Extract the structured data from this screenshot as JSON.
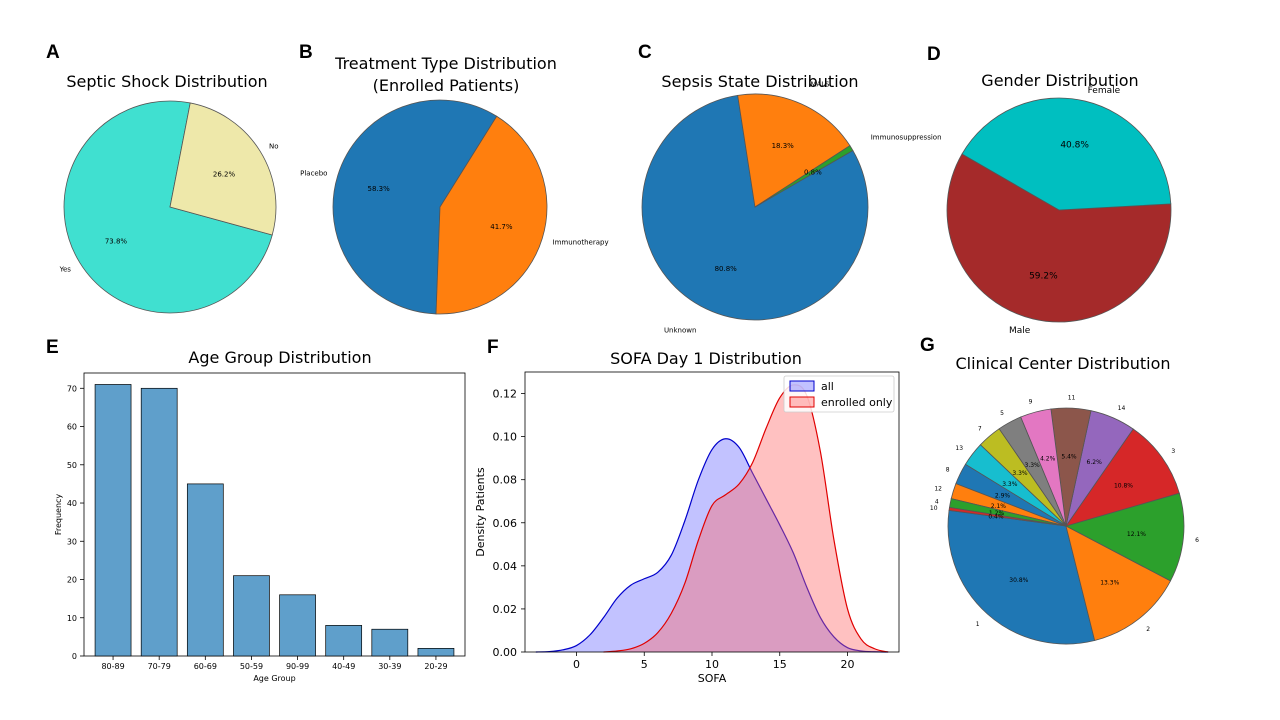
{
  "panels": {
    "A": {
      "letter": "A",
      "title": "Septic Shock Distribution"
    },
    "B": {
      "letter": "B",
      "title": "Treatment Type Distribution\n(Enrolled Patients)"
    },
    "C": {
      "letter": "C",
      "title": "Sepsis State Distribution"
    },
    "D": {
      "letter": "D",
      "title": "Gender Distribution"
    },
    "E": {
      "letter": "E",
      "title": "Age Group Distribution"
    },
    "F": {
      "letter": "F",
      "title": "SOFA Day 1 Distribution"
    },
    "G": {
      "letter": "G",
      "title": "Clinical Center Distribution"
    }
  },
  "chart_data": [
    {
      "id": "A",
      "type": "pie",
      "title": "Septic Shock Distribution",
      "slices": [
        {
          "label": "No",
          "pct_label": "26.2%",
          "value": 26.2,
          "color": "#EEE8AA"
        },
        {
          "label": "Yes",
          "pct_label": "73.8%",
          "value": 73.8,
          "color": "#40E0D0"
        }
      ]
    },
    {
      "id": "B",
      "type": "pie",
      "title": "Treatment Type Distribution (Enrolled Patients)",
      "slices": [
        {
          "label": "Placebo",
          "pct_label": "58.3%",
          "value": 58.3,
          "color": "#1f77b4"
        },
        {
          "label": "Immunotherapy",
          "pct_label": "41.7%",
          "value": 41.7,
          "color": "#ff7f0e"
        }
      ]
    },
    {
      "id": "C",
      "type": "pie",
      "title": "Sepsis State Distribution",
      "slices": [
        {
          "label": "Unknown",
          "pct_label": "80.8%",
          "value": 80.8,
          "color": "#1f77b4"
        },
        {
          "label": "MALS",
          "pct_label": "18.3%",
          "value": 18.3,
          "color": "#ff7f0e"
        },
        {
          "label": "Immunosuppression",
          "pct_label": "0.8%",
          "value": 0.8,
          "color": "#2ca02c"
        }
      ]
    },
    {
      "id": "D",
      "type": "pie",
      "title": "Gender Distribution",
      "slices": [
        {
          "label": "Male",
          "pct_label": "59.2%",
          "value": 59.2,
          "color": "#A52A2A"
        },
        {
          "label": "Female",
          "pct_label": "40.8%",
          "value": 40.8,
          "color": "#00BFC0"
        }
      ]
    },
    {
      "id": "E",
      "type": "bar",
      "title": "Age Group Distribution",
      "xlabel": "Age Group",
      "ylabel": "Frequency",
      "categories": [
        "80-89",
        "70-79",
        "60-69",
        "50-59",
        "90-99",
        "40-49",
        "30-39",
        "20-29"
      ],
      "values": [
        71,
        70,
        45,
        21,
        16,
        8,
        7,
        2
      ],
      "ylim": [
        0,
        74
      ],
      "yticks": [
        0,
        10,
        20,
        30,
        40,
        50,
        60,
        70
      ],
      "bar_color": "#5f9fcb"
    },
    {
      "id": "F",
      "type": "area",
      "title": "SOFA Day 1 Distribution",
      "xlabel": "SOFA",
      "ylabel": "Density Patients",
      "xlim": [
        -3.8,
        23.8
      ],
      "ylim": [
        0,
        0.13
      ],
      "xticks": [
        0,
        5,
        10,
        15,
        20
      ],
      "yticks": [
        "0.00",
        "0.02",
        "0.04",
        "0.06",
        "0.08",
        "0.10",
        "0.12"
      ],
      "legend_position": "top-right",
      "series": [
        {
          "name": "all",
          "color": "#0000cc",
          "fill": "rgba(120,120,255,0.45)",
          "x": [
            -3,
            -2,
            -1,
            0,
            1,
            2,
            3,
            4,
            5,
            6,
            7,
            8,
            9,
            10,
            11,
            12,
            13,
            14,
            15,
            16,
            17,
            18,
            19,
            20,
            21,
            22,
            23
          ],
          "y": [
            0,
            0.0002,
            0.001,
            0.003,
            0.008,
            0.016,
            0.025,
            0.031,
            0.034,
            0.037,
            0.045,
            0.061,
            0.08,
            0.094,
            0.099,
            0.095,
            0.083,
            0.071,
            0.059,
            0.046,
            0.03,
            0.016,
            0.007,
            0.002,
            0.0005,
            0.0001,
            0
          ]
        },
        {
          "name": "enrolled only",
          "color": "#e00000",
          "fill": "rgba(255,100,100,0.4)",
          "x": [
            2,
            3,
            4,
            5,
            6,
            7,
            8,
            9,
            10,
            11,
            12,
            13,
            14,
            15,
            16,
            17,
            18,
            19,
            20,
            21,
            22,
            23
          ],
          "y": [
            0,
            0.0005,
            0.0015,
            0.004,
            0.009,
            0.018,
            0.032,
            0.052,
            0.068,
            0.073,
            0.078,
            0.088,
            0.104,
            0.118,
            0.124,
            0.119,
            0.093,
            0.052,
            0.02,
            0.006,
            0.0015,
            0
          ]
        }
      ]
    },
    {
      "id": "G",
      "type": "pie",
      "title": "Clinical Center Distribution",
      "slices": [
        {
          "label": "1",
          "pct_label": "30.8%",
          "value": 30.8,
          "color": "#1f77b4"
        },
        {
          "label": "2",
          "pct_label": "13.3%",
          "value": 13.3,
          "color": "#ff7f0e"
        },
        {
          "label": "6",
          "pct_label": "12.1%",
          "value": 12.1,
          "color": "#2ca02c"
        },
        {
          "label": "3",
          "pct_label": "10.8%",
          "value": 10.8,
          "color": "#d62728"
        },
        {
          "label": "14",
          "pct_label": "6.2%",
          "value": 6.2,
          "color": "#9467bd"
        },
        {
          "label": "11",
          "pct_label": "5.4%",
          "value": 5.4,
          "color": "#8c564b"
        },
        {
          "label": "9",
          "pct_label": "4.2%",
          "value": 4.2,
          "color": "#e377c2"
        },
        {
          "label": "5",
          "pct_label": "3.3%",
          "value": 3.3,
          "color": "#7f7f7f"
        },
        {
          "label": "7",
          "pct_label": "3.3%",
          "value": 3.3,
          "color": "#bcbd22"
        },
        {
          "label": "13",
          "pct_label": "3.3%",
          "value": 3.3,
          "color": "#17becf"
        },
        {
          "label": "8",
          "pct_label": "2.9%",
          "value": 2.9,
          "color": "#1f77b4"
        },
        {
          "label": "12",
          "pct_label": "2.1%",
          "value": 2.1,
          "color": "#ff7f0e"
        },
        {
          "label": "4",
          "pct_label": "1.2%",
          "value": 1.2,
          "color": "#2ca02c"
        },
        {
          "label": "10",
          "pct_label": "0.4%",
          "value": 0.4,
          "color": "#d62728"
        }
      ]
    }
  ]
}
